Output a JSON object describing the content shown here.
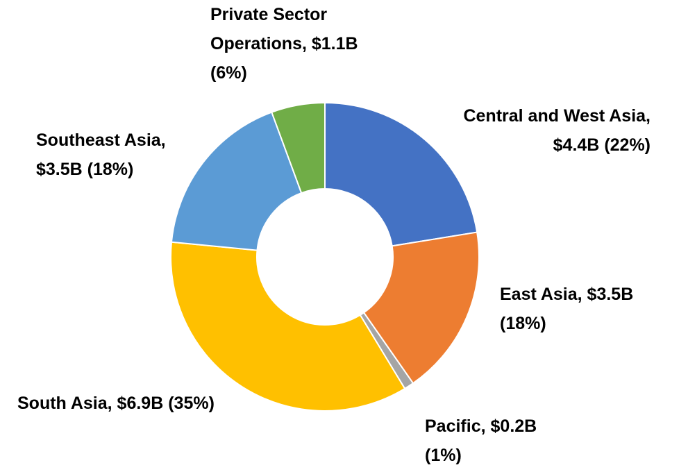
{
  "chart_data": {
    "type": "donut",
    "categories": [
      "Central and West Asia,",
      "East Asia,",
      "Pacific,",
      "South Asia,",
      "Southeast Asia,",
      "Private Sector Operations,"
    ],
    "values": [
      4.4,
      3.5,
      0.2,
      6.9,
      3.5,
      1.1
    ],
    "value_labels": [
      "$4.4B",
      "$3.5B",
      "$0.2B",
      "$6.9B",
      "$3.5B",
      "$1.1B"
    ],
    "percent_labels": [
      "(22%)",
      "(18%)",
      "(1%)",
      "(35%)",
      "(18%)",
      "(6%)"
    ],
    "colors": [
      "#4472c4",
      "#ed7d31",
      "#a5a5a5",
      "#ffc000",
      "#5b9bd5",
      "#70ad47"
    ]
  }
}
